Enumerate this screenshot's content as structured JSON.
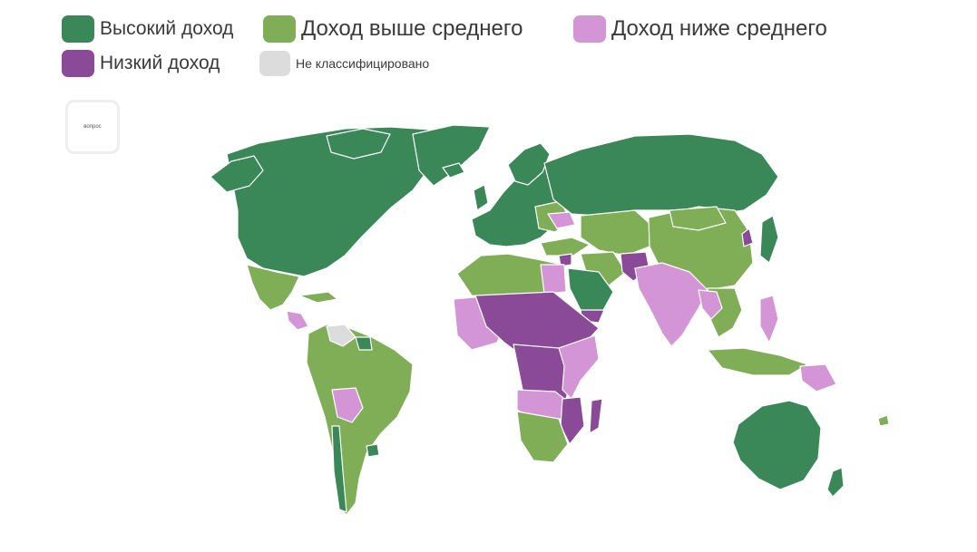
{
  "legend": {
    "items": [
      {
        "key": "high",
        "label": "Высокий доход",
        "color": "#3a8758"
      },
      {
        "key": "upper_middle",
        "label": "Доход выше среднего",
        "color": "#7fae57"
      },
      {
        "key": "lower_middle",
        "label": "Доход ниже среднего",
        "color": "#d395d6"
      },
      {
        "key": "low",
        "label": "Низкий доход",
        "color": "#8b4a97"
      },
      {
        "key": "unclassified",
        "label": "Не классифицировано",
        "color": "#dcdcdc"
      }
    ]
  },
  "badge": {
    "label": "вопрос"
  },
  "map": {
    "borders_color": "#ffffff"
  }
}
